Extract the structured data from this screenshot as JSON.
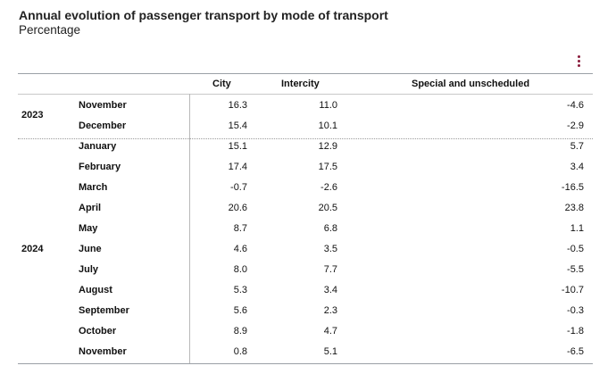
{
  "header": {
    "title": "Annual evolution of passenger transport by mode of transport",
    "subtitle": "Percentage"
  },
  "menu": {
    "icon": "vertical-ellipsis-icon",
    "color": "#8a1c3c"
  },
  "table": {
    "columns": [
      "City",
      "Intercity",
      "Special and unscheduled"
    ],
    "groups": [
      {
        "year": "2023",
        "rows": [
          {
            "month": "November",
            "city": "16.3",
            "intercity": "11.0",
            "special": "-4.6"
          },
          {
            "month": "December",
            "city": "15.4",
            "intercity": "10.1",
            "special": "-2.9"
          }
        ]
      },
      {
        "year": "2024",
        "rows": [
          {
            "month": "January",
            "city": "15.1",
            "intercity": "12.9",
            "special": "5.7"
          },
          {
            "month": "February",
            "city": "17.4",
            "intercity": "17.5",
            "special": "3.4"
          },
          {
            "month": "March",
            "city": "-0.7",
            "intercity": "-2.6",
            "special": "-16.5"
          },
          {
            "month": "April",
            "city": "20.6",
            "intercity": "20.5",
            "special": "23.8"
          },
          {
            "month": "May",
            "city": "8.7",
            "intercity": "6.8",
            "special": "1.1"
          },
          {
            "month": "June",
            "city": "4.6",
            "intercity": "3.5",
            "special": "-0.5"
          },
          {
            "month": "July",
            "city": "8.0",
            "intercity": "7.7",
            "special": "-5.5"
          },
          {
            "month": "August",
            "city": "5.3",
            "intercity": "3.4",
            "special": "-10.7"
          },
          {
            "month": "September",
            "city": "5.6",
            "intercity": "2.3",
            "special": "-0.3"
          },
          {
            "month": "October",
            "city": "8.9",
            "intercity": "4.7",
            "special": "-1.8"
          },
          {
            "month": "November",
            "city": "0.8",
            "intercity": "5.1",
            "special": "-6.5"
          }
        ]
      }
    ]
  }
}
